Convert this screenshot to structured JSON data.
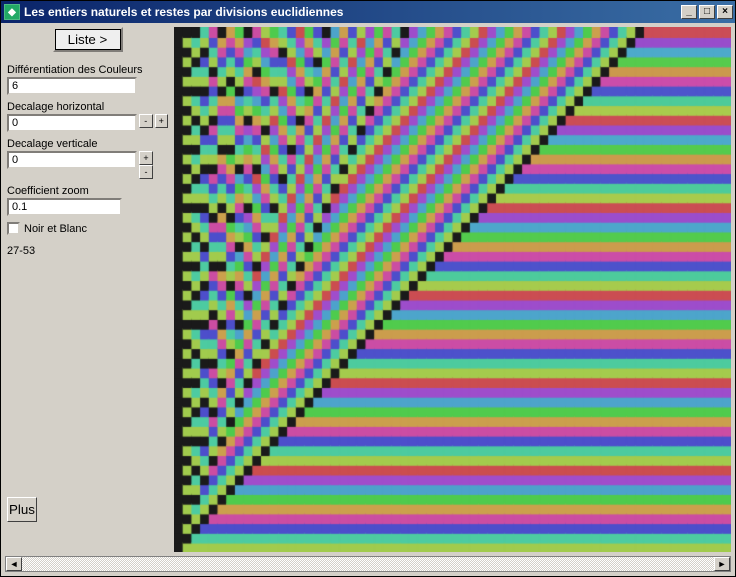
{
  "titlebar": {
    "title": "Les entiers naturels  et restes par divisions euclidiennes",
    "min_glyph": "_",
    "restore_glyph": "□",
    "close_glyph": "×"
  },
  "sidebar": {
    "liste_label": "Liste >",
    "diff_couleurs": {
      "label": "Différentiation des Couleurs",
      "value": "6"
    },
    "dec_h": {
      "label": "Decalage horizontal",
      "value": "0",
      "minus": "-",
      "plus": "+"
    },
    "dec_v": {
      "label": "Decalage verticale",
      "value": "0",
      "plus": "+",
      "minus": "-"
    },
    "coeff_zoom": {
      "label": "Coefficient zoom",
      "value": "0.1"
    },
    "noir_blanc": {
      "label": "Noir et Blanc",
      "checked": false
    },
    "coord": "27-53",
    "plus_label": "Plus"
  },
  "viz": {
    "width_cells": 64,
    "height_cells": 54,
    "color_diff": 6,
    "zoom": 0.1,
    "background": "#000000",
    "zero_color": "#1a1a1a",
    "saturation": 0.55,
    "lightness": 0.55
  },
  "scroll": {
    "left_glyph": "◄",
    "right_glyph": "►"
  }
}
